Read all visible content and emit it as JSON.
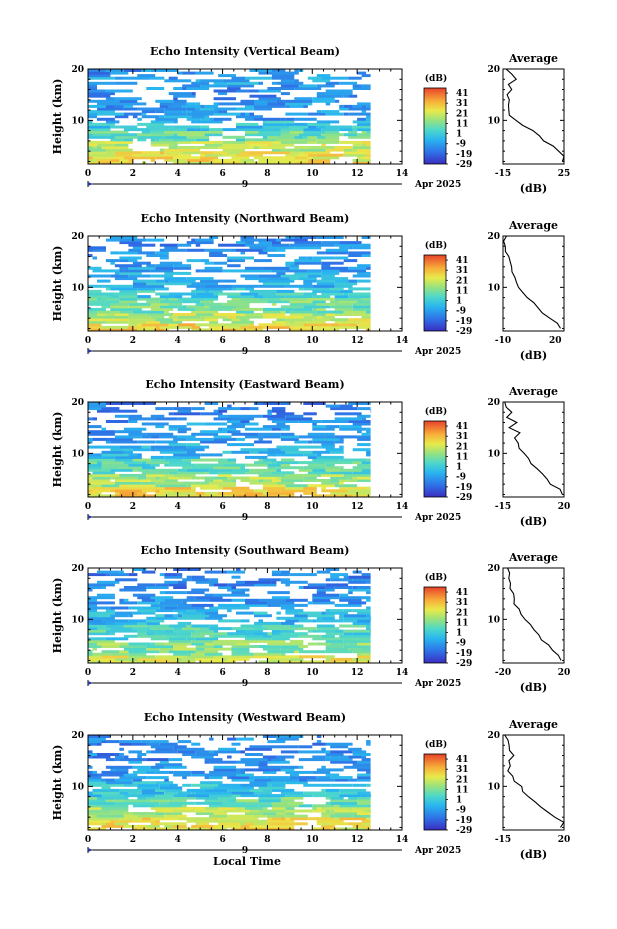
{
  "chart_data": [
    {
      "type": "heatmap",
      "title": "Echo Intensity (Vertical Beam)",
      "ylabel": "Height (km)",
      "xlim": [
        0,
        14
      ],
      "ylim": [
        1.5,
        20
      ],
      "x_ticks": [
        0,
        2,
        4,
        6,
        8,
        10,
        12,
        14
      ],
      "y_ticks": [
        10,
        20
      ],
      "date_label": "Apr 2025",
      "day_label": "9",
      "data_end_hour": 12.6,
      "colorbar": {
        "unit": "(dB)",
        "ticks": [
          41,
          31,
          21,
          11,
          1,
          -9,
          -19,
          -29
        ],
        "range": [
          -29,
          46
        ]
      },
      "profile_layers": [
        [
          1.5,
          4,
          24
        ],
        [
          4,
          6,
          18
        ],
        [
          6,
          8,
          8
        ],
        [
          8,
          10,
          -2
        ],
        [
          10,
          14,
          -10
        ],
        [
          14,
          17,
          -12
        ],
        [
          17,
          19,
          -8
        ],
        [
          19,
          20,
          -12
        ]
      ],
      "average": {
        "title": "Average",
        "xlabel": "(dB)",
        "xlim": [
          -15,
          25
        ],
        "x_ticks": [
          -15,
          25
        ],
        "ylim": [
          1.5,
          20
        ],
        "y_ticks": [
          10,
          20
        ],
        "profile": [
          [
            2,
            24
          ],
          [
            3,
            25
          ],
          [
            4,
            21
          ],
          [
            5,
            17
          ],
          [
            6,
            12
          ],
          [
            7,
            8
          ],
          [
            8,
            4
          ],
          [
            9,
            -2
          ],
          [
            10,
            -6
          ],
          [
            11,
            -10
          ],
          [
            12,
            -12
          ],
          [
            13,
            -11
          ],
          [
            14,
            -10
          ],
          [
            15,
            -13
          ],
          [
            16,
            -9
          ],
          [
            17,
            -11
          ],
          [
            18,
            -7
          ],
          [
            19,
            -10
          ],
          [
            20,
            -13
          ]
        ]
      }
    },
    {
      "type": "heatmap",
      "title": "Echo Intensity (Northward Beam)",
      "ylabel": "Height (km)",
      "xlim": [
        0,
        14
      ],
      "ylim": [
        1.5,
        20
      ],
      "x_ticks": [
        0,
        2,
        4,
        6,
        8,
        10,
        12,
        14
      ],
      "y_ticks": [
        10,
        20
      ],
      "date_label": "Apr 2025",
      "day_label": "9",
      "data_end_hour": 12.6,
      "colorbar": {
        "unit": "(dB)",
        "ticks": [
          41,
          31,
          21,
          11,
          1,
          -9,
          -19,
          -29
        ],
        "range": [
          -29,
          46
        ]
      },
      "profile_layers": [
        [
          1.5,
          3,
          26
        ],
        [
          3,
          5,
          18
        ],
        [
          5,
          8,
          10
        ],
        [
          8,
          10,
          0
        ],
        [
          10,
          13,
          -6
        ],
        [
          13,
          16,
          -10
        ],
        [
          16,
          20,
          -12
        ]
      ],
      "average": {
        "title": "Average",
        "xlabel": "(dB)",
        "xlim": [
          -10,
          25
        ],
        "x_ticks": [
          -10,
          20
        ],
        "ylim": [
          1.5,
          20
        ],
        "y_ticks": [
          10,
          20
        ],
        "profile": [
          [
            2,
            23
          ],
          [
            3,
            22
          ],
          [
            4,
            17
          ],
          [
            5,
            13
          ],
          [
            6,
            10
          ],
          [
            7,
            7
          ],
          [
            8,
            4
          ],
          [
            9,
            1
          ],
          [
            10,
            -1
          ],
          [
            11,
            -3
          ],
          [
            12,
            -4
          ],
          [
            13,
            -5
          ],
          [
            14,
            -6
          ],
          [
            15,
            -6
          ],
          [
            16,
            -7
          ],
          [
            17,
            -8
          ],
          [
            18,
            -8
          ],
          [
            19,
            -9
          ],
          [
            20,
            -8
          ]
        ]
      }
    },
    {
      "type": "heatmap",
      "title": "Echo Intensity (Eastward Beam)",
      "ylabel": "Height (km)",
      "xlim": [
        0,
        14
      ],
      "ylim": [
        1.5,
        20
      ],
      "x_ticks": [
        0,
        2,
        4,
        6,
        8,
        10,
        12,
        14
      ],
      "y_ticks": [
        10,
        20
      ],
      "date_label": "Apr 2025",
      "day_label": "9",
      "data_end_hour": 12.6,
      "colorbar": {
        "unit": "(dB)",
        "ticks": [
          41,
          31,
          21,
          11,
          1,
          -9,
          -19,
          -29
        ],
        "range": [
          -29,
          46
        ]
      },
      "profile_layers": [
        [
          1.5,
          3.5,
          26
        ],
        [
          3.5,
          6,
          16
        ],
        [
          6,
          9,
          6
        ],
        [
          9,
          12,
          -4
        ],
        [
          12,
          16,
          -10
        ],
        [
          16,
          20,
          -14
        ]
      ],
      "average": {
        "title": "Average",
        "xlabel": "(dB)",
        "xlim": [
          -15,
          20
        ],
        "x_ticks": [
          -15,
          20
        ],
        "ylim": [
          1.5,
          20
        ],
        "y_ticks": [
          10,
          20
        ],
        "profile": [
          [
            2,
            19
          ],
          [
            3,
            18
          ],
          [
            4,
            13
          ],
          [
            5,
            10
          ],
          [
            6,
            7
          ],
          [
            7,
            4
          ],
          [
            8,
            2
          ],
          [
            9,
            -1
          ],
          [
            10,
            -3
          ],
          [
            11,
            -6
          ],
          [
            12,
            -7
          ],
          [
            13,
            -9
          ],
          [
            14,
            -6
          ],
          [
            15,
            -11
          ],
          [
            16,
            -8
          ],
          [
            17,
            -12
          ],
          [
            18,
            -10
          ],
          [
            19,
            -13
          ],
          [
            20,
            -14
          ]
        ]
      }
    },
    {
      "type": "heatmap",
      "title": "Echo Intensity (Southward Beam)",
      "ylabel": "Height (km)",
      "xlim": [
        0,
        14
      ],
      "ylim": [
        1.5,
        20
      ],
      "x_ticks": [
        0,
        2,
        4,
        6,
        8,
        10,
        12,
        14
      ],
      "y_ticks": [
        10,
        20
      ],
      "date_label": "Apr 2025",
      "day_label": "9",
      "data_end_hour": 12.6,
      "colorbar": {
        "unit": "(dB)",
        "ticks": [
          41,
          31,
          21,
          11,
          1,
          -9,
          -19,
          -29
        ],
        "range": [
          -29,
          46
        ]
      },
      "profile_layers": [
        [
          1.5,
          3,
          22
        ],
        [
          3,
          6,
          12
        ],
        [
          6,
          9,
          4
        ],
        [
          9,
          12,
          -4
        ],
        [
          12,
          16,
          -10
        ],
        [
          16,
          20,
          -14
        ]
      ],
      "average": {
        "title": "Average",
        "xlabel": "(dB)",
        "xlim": [
          -20,
          20
        ],
        "x_ticks": [
          -20,
          20
        ],
        "ylim": [
          1.5,
          20
        ],
        "y_ticks": [
          10,
          20
        ],
        "profile": [
          [
            2,
            18
          ],
          [
            3,
            16
          ],
          [
            4,
            12
          ],
          [
            5,
            9
          ],
          [
            6,
            6
          ],
          [
            7,
            3
          ],
          [
            8,
            0
          ],
          [
            9,
            -3
          ],
          [
            10,
            -6
          ],
          [
            11,
            -8
          ],
          [
            12,
            -10
          ],
          [
            13,
            -12
          ],
          [
            14,
            -13
          ],
          [
            15,
            -14
          ],
          [
            16,
            -15
          ],
          [
            17,
            -16
          ],
          [
            18,
            -17
          ],
          [
            19,
            -16
          ],
          [
            20,
            -17
          ]
        ]
      }
    },
    {
      "type": "heatmap",
      "title": "Echo Intensity (Westward Beam)",
      "ylabel": "Height (km)",
      "xlabel": "Local Time",
      "xlim": [
        0,
        14
      ],
      "ylim": [
        1.5,
        20
      ],
      "x_ticks": [
        0,
        2,
        4,
        6,
        8,
        10,
        12,
        14
      ],
      "y_ticks": [
        10,
        20
      ],
      "date_label": "Apr 2025",
      "day_label": "9",
      "data_end_hour": 12.6,
      "colorbar": {
        "unit": "(dB)",
        "ticks": [
          41,
          31,
          21,
          11,
          1,
          -9,
          -19,
          -29
        ],
        "range": [
          -29,
          46
        ]
      },
      "profile_layers": [
        [
          1.5,
          4,
          24
        ],
        [
          4,
          6,
          16
        ],
        [
          6,
          8,
          8
        ],
        [
          8,
          11,
          -2
        ],
        [
          11,
          15,
          -10
        ],
        [
          15,
          20,
          -13
        ]
      ],
      "average": {
        "title": "Average",
        "xlabel": "(dB)",
        "xlim": [
          -15,
          20
        ],
        "x_ticks": [
          -15,
          20
        ],
        "ylim": [
          1.5,
          20
        ],
        "y_ticks": [
          10,
          20
        ],
        "profile": [
          [
            2,
            18
          ],
          [
            3,
            19
          ],
          [
            4,
            15
          ],
          [
            5,
            11
          ],
          [
            6,
            7
          ],
          [
            7,
            3
          ],
          [
            8,
            0
          ],
          [
            9,
            -3
          ],
          [
            10,
            -5
          ],
          [
            11,
            -8
          ],
          [
            12,
            -10
          ],
          [
            13,
            -12
          ],
          [
            14,
            -11
          ],
          [
            15,
            -12
          ],
          [
            16,
            -9
          ],
          [
            17,
            -12
          ],
          [
            18,
            -11
          ],
          [
            19,
            -13
          ],
          [
            20,
            -14
          ]
        ]
      }
    }
  ]
}
